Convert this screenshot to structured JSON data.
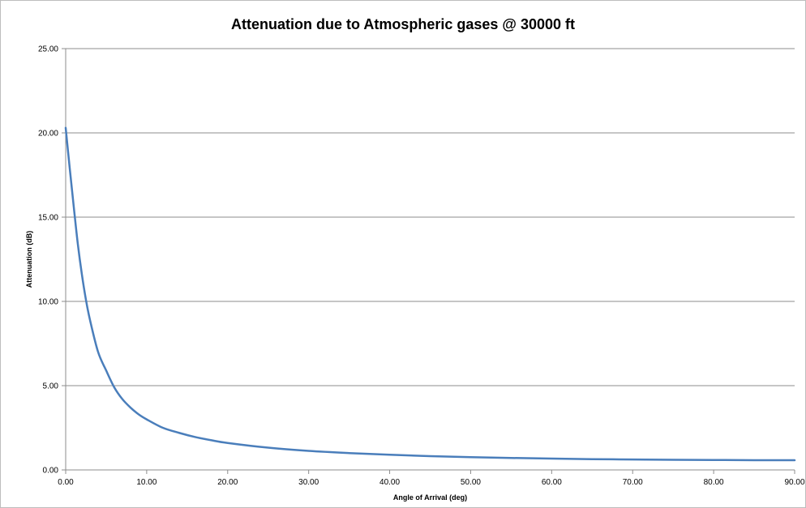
{
  "chart_data": {
    "type": "line",
    "title": "Attenuation due to Atmospheric gases @ 30000 ft",
    "xlabel": "Angle of Arrival (deg)",
    "ylabel": "Attenuation (dB)",
    "xlim": [
      0,
      90
    ],
    "ylim": [
      0,
      25
    ],
    "x_ticks": [
      "0.00",
      "10.00",
      "20.00",
      "30.00",
      "40.00",
      "50.00",
      "60.00",
      "70.00",
      "80.00",
      "90.00"
    ],
    "y_ticks": [
      "0.00",
      "5.00",
      "10.00",
      "15.00",
      "20.00",
      "25.00"
    ],
    "grid": "horizontal",
    "legend": "none",
    "series": [
      {
        "color": "#4a7ebb",
        "x": [
          0,
          0.5,
          1,
          1.5,
          2,
          2.5,
          3,
          4,
          5,
          6,
          7,
          8,
          9,
          10,
          12,
          14,
          16,
          18,
          20,
          25,
          30,
          35,
          40,
          45,
          50,
          55,
          60,
          65,
          70,
          75,
          80,
          85,
          90
        ],
        "y": [
          20.3,
          17.9,
          15.6,
          13.4,
          11.6,
          10.1,
          8.9,
          7.0,
          5.9,
          4.9,
          4.2,
          3.7,
          3.3,
          3.0,
          2.5,
          2.2,
          1.95,
          1.76,
          1.6,
          1.32,
          1.13,
          1.0,
          0.9,
          0.82,
          0.76,
          0.71,
          0.67,
          0.64,
          0.62,
          0.6,
          0.59,
          0.58,
          0.58
        ]
      }
    ]
  }
}
